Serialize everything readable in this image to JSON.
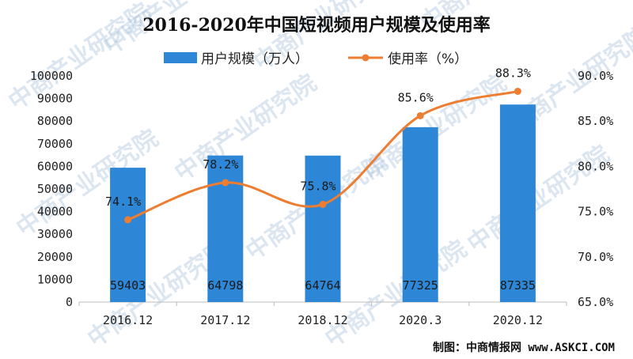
{
  "chart_data": {
    "type": "bar",
    "title": "2016-2020年中国短视频用户规模及使用率",
    "categories": [
      "2016.12",
      "2017.12",
      "2018.12",
      "2020.3",
      "2020.12"
    ],
    "series": [
      {
        "name": "用户规模（万人）",
        "type": "bar",
        "axis": "left",
        "color": "#2e86d6",
        "values": [
          59403,
          64798,
          64764,
          77325,
          87335
        ],
        "labels": [
          "59403",
          "64798",
          "64764",
          "77325",
          "87335"
        ]
      },
      {
        "name": "使用率（%）",
        "type": "line",
        "axis": "right",
        "color": "#ed7d31",
        "values": [
          74.1,
          78.2,
          75.8,
          85.6,
          88.3
        ],
        "labels": [
          "74.1%",
          "78.2%",
          "75.8%",
          "85.6%",
          "88.3%"
        ]
      }
    ],
    "y_left": {
      "min": 0,
      "max": 100000,
      "ticks": [
        "0",
        "10000",
        "20000",
        "30000",
        "40000",
        "50000",
        "60000",
        "70000",
        "80000",
        "90000",
        "100000"
      ]
    },
    "y_right": {
      "min": 65,
      "max": 90,
      "ticks": [
        "65.0%",
        "70.0%",
        "75.0%",
        "80.0%",
        "85.0%",
        "90.0%"
      ]
    },
    "legend_position": "top",
    "grid": false
  },
  "source": "制图：中商情报网 www.ASKCI.COM",
  "watermark": "中商产业研究院"
}
